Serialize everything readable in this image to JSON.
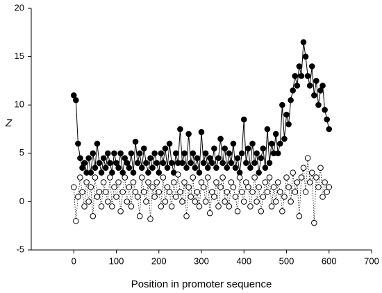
{
  "chart_data": {
    "type": "scatter",
    "x_label": "Position in promoter sequence",
    "y_label": "Z",
    "xlim": [
      -100,
      700
    ],
    "ylim": [
      -5,
      20
    ],
    "xticks": [
      0,
      100,
      200,
      300,
      400,
      500,
      600,
      700
    ],
    "yticks": [
      -5,
      0,
      5,
      10,
      15,
      20
    ],
    "x": [
      0,
      5,
      10,
      15,
      20,
      25,
      30,
      35,
      40,
      45,
      50,
      55,
      60,
      65,
      70,
      75,
      80,
      85,
      90,
      95,
      100,
      105,
      110,
      115,
      120,
      125,
      130,
      135,
      140,
      145,
      150,
      155,
      160,
      165,
      170,
      175,
      180,
      185,
      190,
      195,
      200,
      205,
      210,
      215,
      220,
      225,
      230,
      235,
      240,
      245,
      250,
      255,
      260,
      265,
      270,
      275,
      280,
      285,
      290,
      295,
      300,
      305,
      310,
      315,
      320,
      325,
      330,
      335,
      340,
      345,
      350,
      355,
      360,
      365,
      370,
      375,
      380,
      385,
      390,
      395,
      400,
      405,
      410,
      415,
      420,
      425,
      430,
      435,
      440,
      445,
      450,
      455,
      460,
      465,
      470,
      475,
      480,
      485,
      490,
      495,
      500,
      505,
      510,
      515,
      520,
      525,
      530,
      535,
      540,
      545,
      550,
      555,
      560,
      565,
      570,
      575,
      580,
      585,
      590,
      595,
      600
    ],
    "series": [
      {
        "color": "#000000",
        "marker_fill": "#000000",
        "line_style": "solid",
        "values": [
          11,
          10.5,
          6,
          4.5,
          3.5,
          4,
          3,
          4.5,
          3,
          5,
          3.5,
          6,
          4,
          3,
          4.5,
          3.5,
          5,
          4,
          3,
          5,
          4,
          3.5,
          5,
          3,
          4.5,
          4,
          3.5,
          5,
          3,
          6.2,
          4,
          5,
          3.5,
          5.5,
          4,
          3,
          4.5,
          3.5,
          5,
          4,
          3,
          5,
          4,
          5.5,
          3.5,
          6,
          4,
          3,
          5,
          4,
          7.5,
          4,
          5,
          3.5,
          7,
          4,
          5,
          3.5,
          4.5,
          3,
          7.2,
          4,
          5,
          3.5,
          4.5,
          4,
          5.5,
          3.5,
          4.5,
          6.5,
          4,
          5.5,
          3.5,
          5,
          4,
          6,
          3.5,
          4.5,
          3,
          5,
          8.5,
          4,
          5.5,
          3.5,
          6,
          4,
          5,
          3,
          4.5,
          5.5,
          3.5,
          7.5,
          4,
          6,
          5,
          7,
          5,
          6,
          10,
          6.5,
          9,
          8,
          10.5,
          11.5,
          13,
          12,
          14,
          13,
          16.5,
          15,
          13,
          12,
          14,
          11,
          12.5,
          10,
          11.5,
          12,
          9.5,
          8.5,
          7.5
        ]
      },
      {
        "color": "#000000",
        "marker_fill": "#ffffff",
        "line_style": "dotted",
        "values": [
          1.5,
          -2,
          0.5,
          2.5,
          1,
          -0.5,
          2,
          0,
          1.5,
          -1.5,
          2.5,
          0.5,
          1,
          -0.5,
          2,
          1,
          0,
          2.5,
          -0.5,
          1.5,
          0.5,
          2,
          -1,
          1,
          2.5,
          0,
          1.5,
          -0.5,
          2,
          1,
          0.5,
          -1.5,
          2.5,
          1,
          0,
          2,
          -1.8,
          1.5,
          0.5,
          2,
          1,
          -0.5,
          2.5,
          0,
          1.5,
          1,
          -0.5,
          2,
          0.5,
          2.8,
          1,
          0,
          2,
          -1.5,
          1.5,
          0.5,
          2.5,
          0,
          1,
          -0.5,
          2,
          1.5,
          0,
          2.5,
          -1.2,
          1,
          0.5,
          2,
          -0.5,
          1.5,
          2.5,
          0,
          1,
          -0.5,
          2,
          1.5,
          0.5,
          -1,
          2.5,
          1,
          0,
          2,
          1.5,
          -0.5,
          1,
          2.5,
          0,
          1.5,
          -1,
          0.5,
          2,
          1,
          2.5,
          -0.5,
          1.5,
          0,
          2,
          1,
          -1,
          0.5,
          2.5,
          1.5,
          0,
          3,
          1,
          2,
          -1.5,
          2.5,
          3.5,
          1,
          4.5,
          2,
          3,
          -2.2,
          2.5,
          1.5,
          3.5,
          0.5,
          2,
          1,
          1.5
        ]
      }
    ]
  }
}
